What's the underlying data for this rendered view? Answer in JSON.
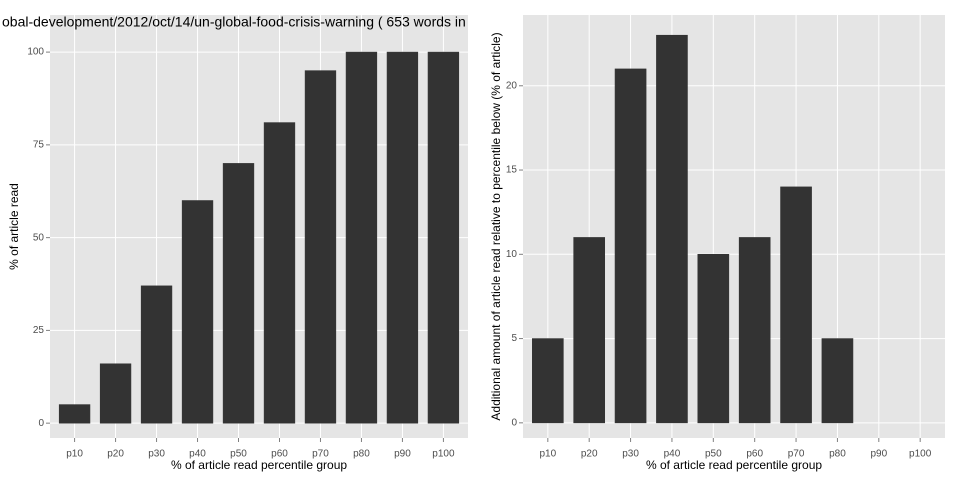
{
  "chart_data": [
    {
      "type": "bar",
      "title": "obal-development/2012/oct/14/un-global-food-crisis-warning ( 653 words in",
      "xlabel": "% of article read percentile group",
      "ylabel": "% of article read",
      "categories": [
        "p10",
        "p20",
        "p30",
        "p40",
        "p50",
        "p60",
        "p70",
        "p80",
        "p90",
        "p100"
      ],
      "values": [
        5,
        16,
        37,
        60,
        70,
        81,
        95,
        100,
        100,
        100
      ],
      "color": "#333333",
      "ylim": [
        -4,
        110
      ],
      "yticks": [
        0,
        25,
        50,
        75,
        100
      ],
      "grid": true
    },
    {
      "type": "bar",
      "xlabel": "% of article read percentile group",
      "ylabel": "Additional amount of article read relative to percentile below (% of article)",
      "categories": [
        "p10",
        "p20",
        "p30",
        "p40",
        "p50",
        "p60",
        "p70",
        "p80",
        "p90",
        "p100"
      ],
      "values": [
        5,
        11,
        21,
        23,
        10,
        11,
        14,
        5,
        0,
        0
      ],
      "color": "#333333",
      "ylim": [
        -0.9,
        24.2
      ],
      "yticks": [
        0,
        5,
        10,
        15,
        20
      ],
      "grid": true
    }
  ]
}
